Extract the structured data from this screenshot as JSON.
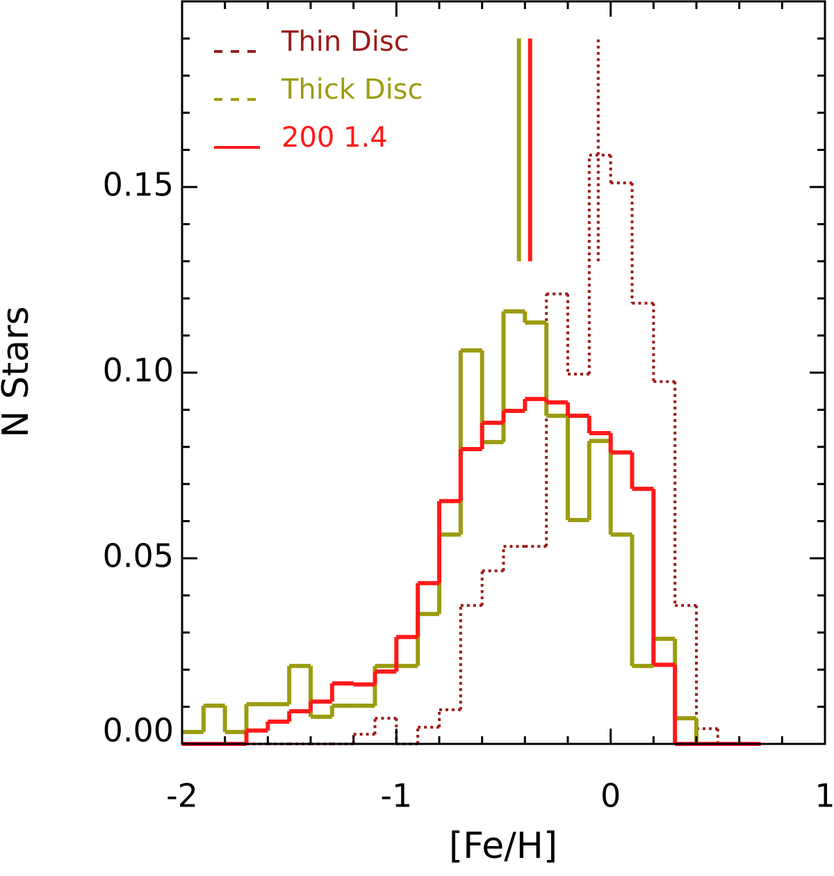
{
  "chart_data": {
    "type": "histogram",
    "xlabel": "[Fe/H]",
    "ylabel": "N Stars",
    "xlim": [
      -2,
      1
    ],
    "ylim": [
      0,
      0.2
    ],
    "xticks": [
      -2,
      -1,
      0,
      1
    ],
    "yticks": [
      {
        "value": 0,
        "label": "0.00"
      },
      {
        "value": 0.05,
        "label": "0.05"
      },
      {
        "value": 0.1,
        "label": "0.10"
      },
      {
        "value": 0.15,
        "label": "0.15"
      }
    ],
    "xminorticks": [
      -1.8,
      -1.6,
      -1.4,
      -1.2,
      -0.8,
      -0.6,
      -0.4,
      -0.2,
      0.2,
      0.4,
      0.6,
      0.8
    ],
    "yminorticks": [
      0.01,
      0.02,
      0.03,
      0.04,
      0.06,
      0.07,
      0.08,
      0.09,
      0.11,
      0.12,
      0.13,
      0.14,
      0.16,
      0.17,
      0.18,
      0.19
    ],
    "legend": "upper left",
    "bins": [
      -2.0,
      -1.9,
      -1.8,
      -1.7,
      -1.6,
      -1.5,
      -1.4,
      -1.3,
      -1.2,
      -1.1,
      -1.0,
      -0.9,
      -0.8,
      -0.7,
      -0.6,
      -0.5,
      -0.4,
      -0.3,
      -0.2,
      -0.1,
      0.0,
      0.1,
      0.2,
      0.3,
      0.4,
      0.5,
      0.6,
      0.7
    ],
    "marker_ylim": [
      0.13,
      0.19
    ],
    "series": [
      {
        "name": "Thin Disc",
        "color": "#9b1b1b",
        "linestyle": "dotted",
        "legend_linestyle": "dashed",
        "mean": -0.058,
        "values": [
          0,
          0,
          0,
          0,
          0,
          0,
          0,
          0,
          0.0026,
          0.0069,
          0,
          0.0045,
          0.0092,
          0.0373,
          0.0466,
          0.0532,
          0.0532,
          0.1212,
          0.0996,
          0.1586,
          0.1511,
          0.1187,
          0.0976,
          0.0373,
          0.0041,
          0,
          0
        ]
      },
      {
        "name": "Thick Disc",
        "color": "#9c9c10",
        "linestyle": "solid",
        "legend_linestyle": "dashed",
        "mean": -0.428,
        "values": [
          0.0032,
          0.0103,
          0.0032,
          0.0107,
          0.0107,
          0.021,
          0.0073,
          0.0103,
          0.0103,
          0.021,
          0.021,
          0.035,
          0.0564,
          0.106,
          0.0813,
          0.1165,
          0.1135,
          0.0884,
          0.0603,
          0.0816,
          0.0564,
          0.021,
          0.0283,
          0.0069,
          0,
          0,
          0
        ]
      },
      {
        "name": "200   1.4",
        "color": "#ff1a1a",
        "linestyle": "solid",
        "legend_linestyle": "solid",
        "mean": -0.376,
        "values": [
          0,
          0,
          0,
          0.0036,
          0.006,
          0.0088,
          0.0114,
          0.0163,
          0.016,
          0.0195,
          0.0288,
          0.0433,
          0.0654,
          0.0794,
          0.0865,
          0.0897,
          0.0929,
          0.092,
          0.0884,
          0.0837,
          0.0785,
          0.0687,
          0.0213,
          0,
          0,
          0,
          0
        ]
      }
    ]
  }
}
